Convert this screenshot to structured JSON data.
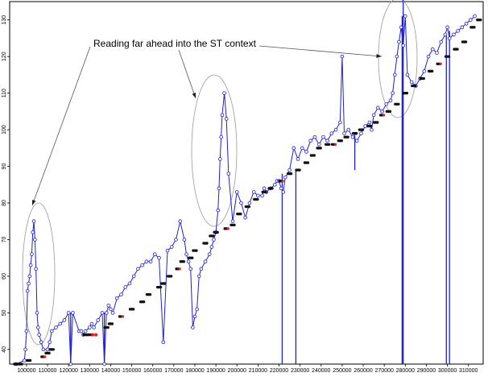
{
  "chart_data": {
    "type": "scatter",
    "title": "",
    "xlabel": "",
    "ylabel": "",
    "xlim": [
      92000,
      317000
    ],
    "ylim": [
      36,
      135
    ],
    "grid": false,
    "legend": "none",
    "x_ticks": [
      "100000",
      "110000",
      "120000",
      "130000",
      "140000",
      "150000",
      "160000",
      "170000",
      "180000",
      "190000",
      "200000",
      "210000",
      "220000",
      "230000",
      "240000",
      "250000",
      "260000",
      "270000",
      "280000",
      "290000",
      "300000",
      "310000"
    ],
    "x_tick_values": [
      100000,
      110000,
      120000,
      130000,
      140000,
      150000,
      160000,
      170000,
      180000,
      190000,
      200000,
      210000,
      220000,
      230000,
      240000,
      250000,
      260000,
      270000,
      280000,
      290000,
      300000,
      310000
    ],
    "y_ticks": [
      "40",
      "50",
      "60",
      "70",
      "80",
      "90",
      "100",
      "110",
      "120",
      "130"
    ],
    "y_tick_values": [
      40,
      50,
      60,
      70,
      80,
      90,
      100,
      110,
      120,
      130
    ],
    "annotation": "Reading far ahead into the ST context",
    "colors": {
      "lookahead": "#1f1fd0",
      "sequential": "#111111",
      "highlight": "#e02020",
      "ellipse": "#999999",
      "axis": "#000000"
    },
    "series": [
      {
        "style": "lookahead-line",
        "x": [
          95000,
          99000,
          99500,
          100000,
          100500,
          101000,
          101500,
          102000,
          102500,
          103000,
          103500,
          104000,
          104500,
          105000,
          105500,
          106000,
          107000,
          108000,
          110000,
          111000,
          112000,
          114000,
          116000,
          118000,
          120000,
          121000,
          122000,
          125000,
          126000,
          127000,
          128000,
          130000,
          131000,
          132000,
          134000,
          136000,
          137000,
          138000,
          139000,
          140000,
          141000,
          143000,
          145000,
          147000,
          149000,
          151000,
          153000,
          155000,
          157000,
          159000,
          161000,
          163000,
          165000,
          167000,
          169000,
          171000,
          173000,
          175000,
          176000,
          177000,
          178000,
          179000,
          180000,
          181000,
          182000,
          183000,
          185000,
          187000,
          188000,
          189000,
          190000,
          191000,
          191500,
          192000,
          192500,
          193000,
          194000,
          195000,
          196000,
          198000,
          200000,
          202000,
          204000,
          206000,
          208000,
          210000,
          212000,
          213000,
          214000,
          216000,
          218000,
          219000,
          220000,
          221000,
          222000,
          223000,
          225000,
          227000,
          229000,
          231000,
          233000,
          235000,
          237000,
          239000,
          241000,
          243000,
          245000,
          247000,
          249000,
          250000,
          251000,
          253000,
          255000,
          257000,
          259000,
          261000,
          263000,
          264000,
          265000,
          267000,
          269000,
          271000,
          273000,
          274000,
          275000,
          276000,
          277000,
          278000,
          279000,
          280000,
          281000,
          283000,
          285000,
          287000,
          289000,
          291000,
          293000,
          295000,
          297000,
          299000,
          300000,
          301000,
          303000,
          305000,
          307000,
          309000,
          311000,
          313000
        ],
        "y": [
          36,
          37,
          40,
          45,
          56,
          58,
          60,
          63,
          66,
          72,
          75,
          70,
          62,
          50,
          46,
          44,
          42,
          40,
          40,
          42,
          45,
          46,
          47,
          48,
          50,
          36,
          50,
          45,
          45,
          44,
          45,
          46,
          47,
          46,
          48,
          50,
          36,
          50,
          52,
          51,
          50,
          54,
          55,
          57,
          58,
          60,
          62,
          63,
          64,
          64,
          66,
          65,
          42,
          67,
          68,
          70,
          75,
          70,
          66,
          64,
          62,
          46,
          49,
          51,
          60,
          62,
          64,
          66,
          68,
          70,
          72,
          78,
          84,
          92,
          98,
          104,
          110,
          103,
          88,
          75,
          83,
          80,
          76,
          80,
          83,
          82,
          82,
          84,
          83,
          84,
          85,
          86,
          86,
          84,
          83,
          87,
          89,
          95,
          92,
          95,
          94,
          97,
          98,
          96,
          98,
          97,
          99,
          100,
          102,
          120,
          99,
          100,
          98,
          97,
          99,
          101,
          102,
          100,
          104,
          106,
          105,
          107,
          108,
          110,
          115,
          120,
          124,
          128,
          123,
          131,
          115,
          113,
          112,
          114,
          116,
          120,
          122,
          121,
          124,
          126,
          128,
          125,
          126,
          127,
          128,
          129,
          130,
          131
        ]
      },
      {
        "style": "sequential-markers",
        "x": [
          95000,
          97000,
          101000,
          108000,
          110000,
          112000,
          128000,
          130000,
          138000,
          140000,
          145000,
          150000,
          155000,
          158000,
          163000,
          165000,
          168000,
          172000,
          174000,
          178000,
          180000,
          185000,
          188000,
          190000,
          195000,
          198000,
          201000,
          205000,
          209000,
          213000,
          216000,
          221000,
          225000,
          229000,
          233000,
          236000,
          239000,
          243000,
          246000,
          249000,
          252000,
          256000,
          259000,
          263000,
          266000,
          269000,
          272000,
          276000,
          280000,
          284000,
          288000,
          292000,
          296000,
          300000,
          304000,
          308000,
          312000,
          315000
        ],
        "y": [
          36,
          36,
          37,
          38,
          39,
          40,
          44,
          44,
          46,
          47,
          49,
          51,
          53,
          55,
          57,
          58,
          60,
          62,
          64,
          65,
          67,
          69,
          71,
          72,
          73,
          74,
          77,
          79,
          81,
          83,
          84,
          86,
          88,
          89,
          91,
          93,
          95,
          96,
          96,
          97,
          98,
          99,
          100,
          101,
          102,
          104,
          105,
          107,
          110,
          112,
          114,
          116,
          118,
          120,
          122,
          124,
          128,
          130
        ]
      },
      {
        "style": "vertical-drops",
        "x": [
          121000,
          137000,
          199000,
          221500,
          228000,
          256000,
          278500,
          279000,
          299500,
          301000
        ],
        "y_from": [
          50,
          50,
          60,
          88,
          89,
          99,
          131,
          136,
          126,
          127
        ],
        "y_to": [
          36,
          36,
          60,
          36,
          36,
          89,
          36,
          36,
          36,
          36
        ]
      }
    ]
  }
}
